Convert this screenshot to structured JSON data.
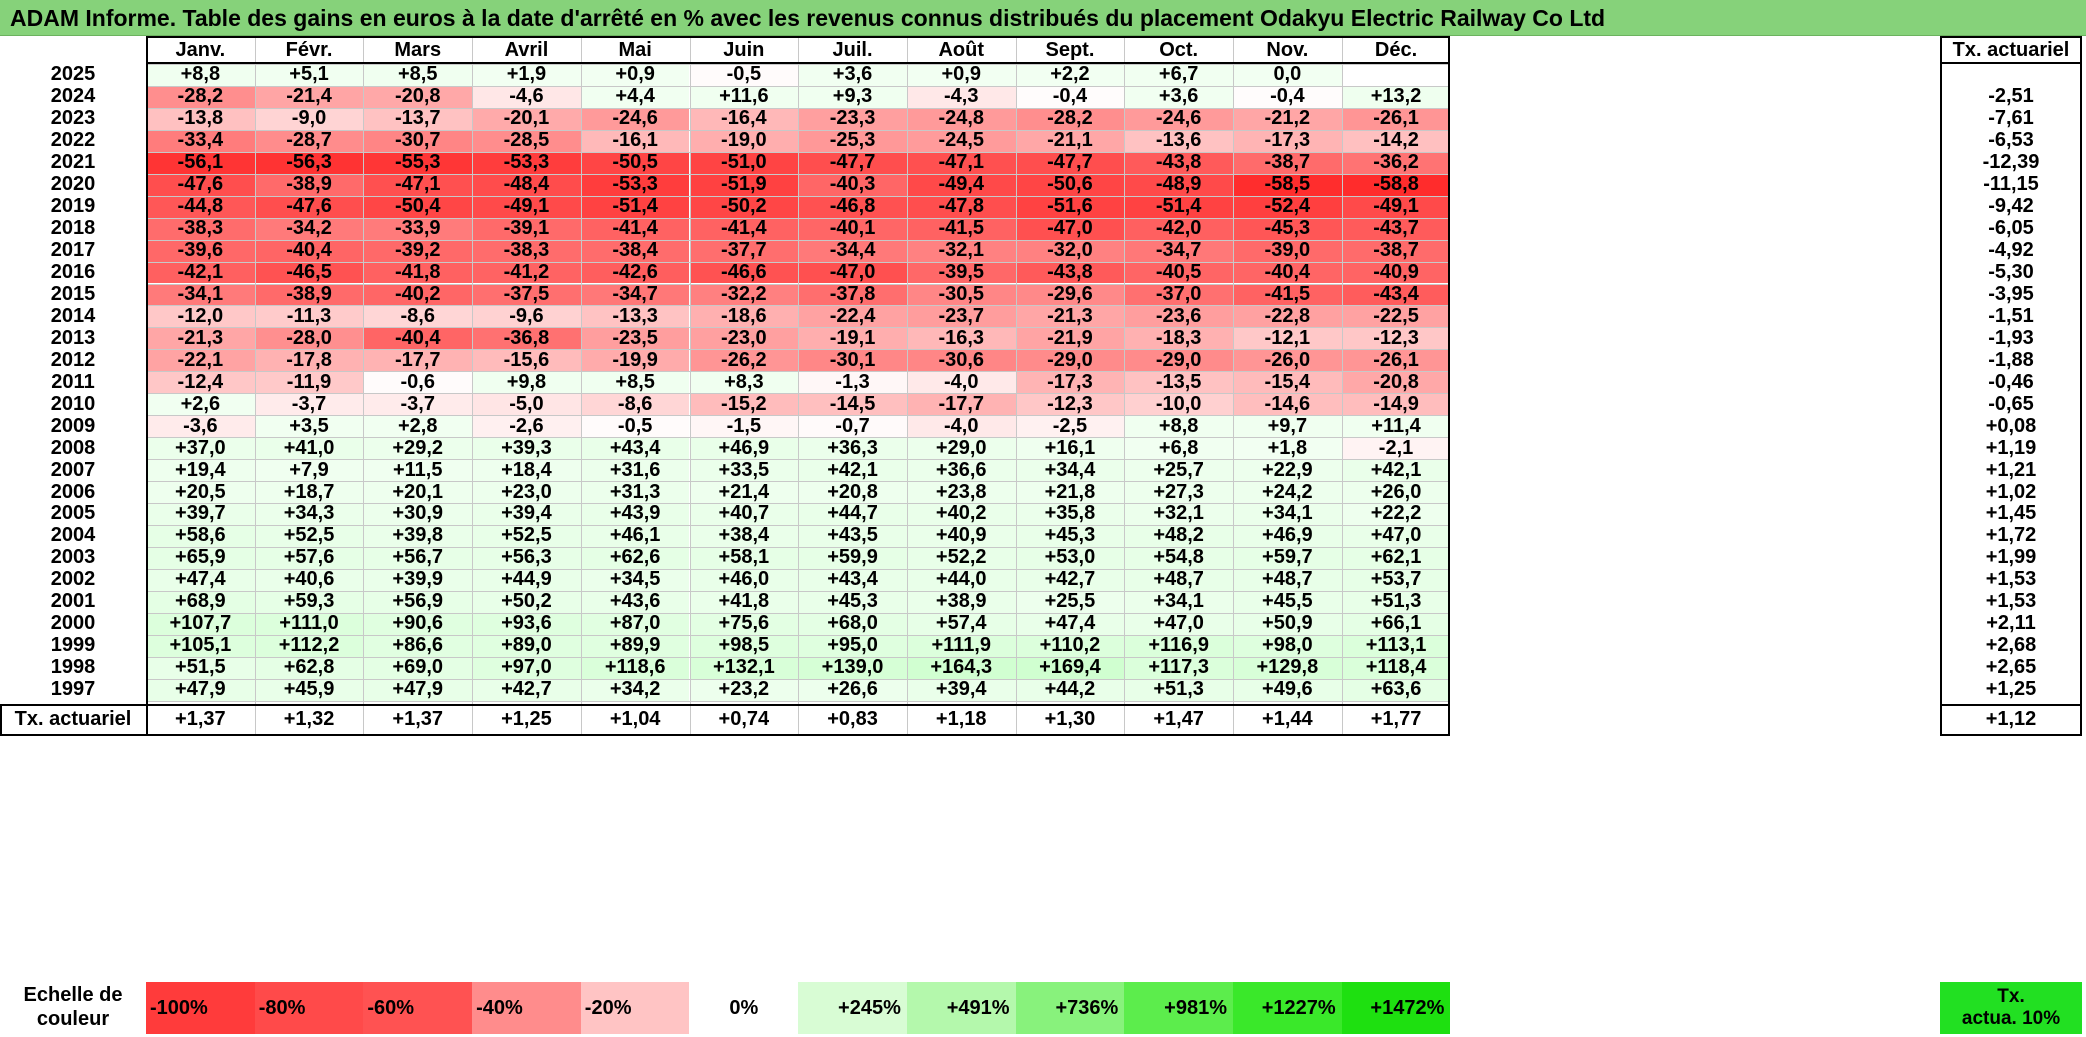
{
  "title": "ADAM Informe. Table des gains en euros à la date d'arrêté en % avec les revenus connus distribués du placement Odakyu Electric Railway Co Ltd",
  "months": [
    "Janv.",
    "Févr.",
    "Mars",
    "Avril",
    "Mai",
    "Juin",
    "Juil.",
    "Août",
    "Sept.",
    "Oct.",
    "Nov.",
    "Déc."
  ],
  "annual_header": "Tx. actuariel",
  "rows": [
    {
      "year": "2025",
      "values": [
        "+8,8",
        "+5,1",
        "+8,5",
        "+1,9",
        "+0,9",
        "-0,5",
        "+3,6",
        "+0,9",
        "+2,2",
        "+6,7",
        "0,0",
        ""
      ],
      "annual": ""
    },
    {
      "year": "2024",
      "values": [
        "-28,2",
        "-21,4",
        "-20,8",
        "-4,6",
        "+4,4",
        "+11,6",
        "+9,3",
        "-4,3",
        "-0,4",
        "+3,6",
        "-0,4",
        "+13,2"
      ],
      "annual": "-2,51"
    },
    {
      "year": "2023",
      "values": [
        "-13,8",
        "-9,0",
        "-13,7",
        "-20,1",
        "-24,6",
        "-16,4",
        "-23,3",
        "-24,8",
        "-28,2",
        "-24,6",
        "-21,2",
        "-26,1"
      ],
      "annual": "-7,61"
    },
    {
      "year": "2022",
      "values": [
        "-33,4",
        "-28,7",
        "-30,7",
        "-28,5",
        "-16,1",
        "-19,0",
        "-25,3",
        "-24,5",
        "-21,1",
        "-13,6",
        "-17,3",
        "-14,2"
      ],
      "annual": "-6,53"
    },
    {
      "year": "2021",
      "values": [
        "-56,1",
        "-56,3",
        "-55,3",
        "-53,3",
        "-50,5",
        "-51,0",
        "-47,7",
        "-47,1",
        "-47,7",
        "-43,8",
        "-38,7",
        "-36,2"
      ],
      "annual": "-12,39"
    },
    {
      "year": "2020",
      "values": [
        "-47,6",
        "-38,9",
        "-47,1",
        "-48,4",
        "-53,3",
        "-51,9",
        "-40,3",
        "-49,4",
        "-50,6",
        "-48,9",
        "-58,5",
        "-58,8"
      ],
      "annual": "-11,15"
    },
    {
      "year": "2019",
      "values": [
        "-44,8",
        "-47,6",
        "-50,4",
        "-49,1",
        "-51,4",
        "-50,2",
        "-46,8",
        "-47,8",
        "-51,6",
        "-51,4",
        "-52,4",
        "-49,1"
      ],
      "annual": "-9,42"
    },
    {
      "year": "2018",
      "values": [
        "-38,3",
        "-34,2",
        "-33,9",
        "-39,1",
        "-41,4",
        "-41,4",
        "-40,1",
        "-41,5",
        "-47,0",
        "-42,0",
        "-45,3",
        "-43,7"
      ],
      "annual": "-6,05"
    },
    {
      "year": "2017",
      "values": [
        "-39,6",
        "-40,4",
        "-39,2",
        "-38,3",
        "-38,4",
        "-37,7",
        "-34,4",
        "-32,1",
        "-32,0",
        "-34,7",
        "-39,0",
        "-38,7"
      ],
      "annual": "-4,92"
    },
    {
      "year": "2016",
      "values": [
        "-42,1",
        "-46,5",
        "-41,8",
        "-41,2",
        "-42,6",
        "-46,6",
        "-47,0",
        "-39,5",
        "-43,8",
        "-40,5",
        "-40,4",
        "-40,9"
      ],
      "annual": "-5,30"
    },
    {
      "year": "2015",
      "values": [
        "-34,1",
        "-38,9",
        "-40,2",
        "-37,5",
        "-34,7",
        "-32,2",
        "-37,8",
        "-30,5",
        "-29,6",
        "-37,0",
        "-41,5",
        "-43,4"
      ],
      "annual": "-3,95"
    },
    {
      "year": "2014",
      "values": [
        "-12,0",
        "-11,3",
        "-8,6",
        "-9,6",
        "-13,3",
        "-18,6",
        "-22,4",
        "-23,7",
        "-21,3",
        "-23,6",
        "-22,8",
        "-22,5"
      ],
      "annual": "-1,51"
    },
    {
      "year": "2013",
      "values": [
        "-21,3",
        "-28,0",
        "-40,4",
        "-36,8",
        "-23,5",
        "-23,0",
        "-19,1",
        "-16,3",
        "-21,9",
        "-18,3",
        "-12,1",
        "-12,3"
      ],
      "annual": "-1,93"
    },
    {
      "year": "2012",
      "values": [
        "-22,1",
        "-17,8",
        "-17,7",
        "-15,6",
        "-19,9",
        "-26,2",
        "-30,1",
        "-30,6",
        "-29,0",
        "-29,0",
        "-26,0",
        "-26,1"
      ],
      "annual": "-1,88"
    },
    {
      "year": "2011",
      "values": [
        "-12,4",
        "-11,9",
        "-0,6",
        "+9,8",
        "+8,5",
        "+8,3",
        "-1,3",
        "-4,0",
        "-17,3",
        "-13,5",
        "-15,4",
        "-20,8"
      ],
      "annual": "-0,46"
    },
    {
      "year": "2010",
      "values": [
        "+2,6",
        "-3,7",
        "-3,7",
        "-5,0",
        "-8,6",
        "-15,2",
        "-14,5",
        "-17,7",
        "-12,3",
        "-10,0",
        "-14,6",
        "-14,9"
      ],
      "annual": "-0,65"
    },
    {
      "year": "2009",
      "values": [
        "-3,6",
        "+3,5",
        "+2,8",
        "-2,6",
        "-0,5",
        "-1,5",
        "-0,7",
        "-4,0",
        "-2,5",
        "+8,8",
        "+9,7",
        "+11,4"
      ],
      "annual": "+0,08"
    },
    {
      "year": "2008",
      "values": [
        "+37,0",
        "+41,0",
        "+29,2",
        "+39,3",
        "+43,4",
        "+46,9",
        "+36,3",
        "+29,0",
        "+16,1",
        "+6,8",
        "+1,8",
        "-2,1"
      ],
      "annual": "+1,19"
    },
    {
      "year": "2007",
      "values": [
        "+19,4",
        "+7,9",
        "+11,5",
        "+18,4",
        "+31,6",
        "+33,5",
        "+42,1",
        "+36,6",
        "+34,4",
        "+25,7",
        "+22,9",
        "+42,1"
      ],
      "annual": "+1,21"
    },
    {
      "year": "2006",
      "values": [
        "+20,5",
        "+18,7",
        "+20,1",
        "+23,0",
        "+31,3",
        "+21,4",
        "+20,8",
        "+23,8",
        "+21,8",
        "+27,3",
        "+24,2",
        "+26,0"
      ],
      "annual": "+1,02"
    },
    {
      "year": "2005",
      "values": [
        "+39,7",
        "+34,3",
        "+30,9",
        "+39,4",
        "+43,9",
        "+40,7",
        "+44,7",
        "+40,2",
        "+35,8",
        "+32,1",
        "+34,1",
        "+22,2"
      ],
      "annual": "+1,45"
    },
    {
      "year": "2004",
      "values": [
        "+58,6",
        "+52,5",
        "+39,8",
        "+52,5",
        "+46,1",
        "+38,4",
        "+43,5",
        "+40,9",
        "+45,3",
        "+48,2",
        "+46,9",
        "+47,0"
      ],
      "annual": "+1,72"
    },
    {
      "year": "2003",
      "values": [
        "+65,9",
        "+57,6",
        "+56,7",
        "+56,3",
        "+62,6",
        "+58,1",
        "+59,9",
        "+52,2",
        "+53,0",
        "+54,8",
        "+59,7",
        "+62,1"
      ],
      "annual": "+1,99"
    },
    {
      "year": "2002",
      "values": [
        "+47,4",
        "+40,6",
        "+39,9",
        "+44,9",
        "+34,5",
        "+46,0",
        "+43,4",
        "+44,0",
        "+42,7",
        "+48,7",
        "+48,7",
        "+53,7"
      ],
      "annual": "+1,53"
    },
    {
      "year": "2001",
      "values": [
        "+68,9",
        "+59,3",
        "+56,9",
        "+50,2",
        "+43,6",
        "+41,8",
        "+45,3",
        "+38,9",
        "+25,5",
        "+34,1",
        "+45,5",
        "+51,3"
      ],
      "annual": "+1,53"
    },
    {
      "year": "2000",
      "values": [
        "+107,7",
        "+111,0",
        "+90,6",
        "+93,6",
        "+87,0",
        "+75,6",
        "+68,0",
        "+57,4",
        "+47,4",
        "+47,0",
        "+50,9",
        "+66,1"
      ],
      "annual": "+2,11"
    },
    {
      "year": "1999",
      "values": [
        "+105,1",
        "+112,2",
        "+86,6",
        "+89,0",
        "+89,9",
        "+98,5",
        "+95,0",
        "+111,9",
        "+110,2",
        "+116,9",
        "+98,0",
        "+113,1"
      ],
      "annual": "+2,68"
    },
    {
      "year": "1998",
      "values": [
        "+51,5",
        "+62,8",
        "+69,0",
        "+97,0",
        "+118,6",
        "+132,1",
        "+139,0",
        "+164,3",
        "+169,4",
        "+117,3",
        "+129,8",
        "+118,4"
      ],
      "annual": "+2,65"
    },
    {
      "year": "1997",
      "values": [
        "+47,9",
        "+45,9",
        "+47,9",
        "+42,7",
        "+34,2",
        "+23,2",
        "+26,6",
        "+39,4",
        "+44,2",
        "+51,3",
        "+49,6",
        "+63,6"
      ],
      "annual": "+1,25"
    }
  ],
  "footer": {
    "label": "Tx. actuariel",
    "values": [
      "+1,37",
      "+1,32",
      "+1,37",
      "+1,25",
      "+1,04",
      "+0,74",
      "+0,83",
      "+1,18",
      "+1,30",
      "+1,47",
      "+1,44",
      "+1,77"
    ],
    "annual": "+1,12"
  },
  "legend": {
    "label_line1": "Echelle de",
    "label_line2": "couleur",
    "items": [
      {
        "label": "-100%",
        "color": "#ff3b3b"
      },
      {
        "label": "-80%",
        "color": "#ff4a4a"
      },
      {
        "label": "-60%",
        "color": "#ff5252"
      },
      {
        "label": "-40%",
        "color": "#ff8c8c"
      },
      {
        "label": "-20%",
        "color": "#ffc4c4"
      },
      {
        "label": "0%",
        "color": "#ffffff"
      },
      {
        "label": "+245%",
        "color": "#d8fcd4"
      },
      {
        "label": "+491%",
        "color": "#b4f8ac"
      },
      {
        "label": "+736%",
        "color": "#88f27c"
      },
      {
        "label": "+981%",
        "color": "#5ced4c"
      },
      {
        "label": "+1227%",
        "color": "#3ae82a"
      },
      {
        "label": "+1472%",
        "color": "#1ee010"
      }
    ],
    "actua_line1": "Tx.",
    "actua_line2": "actua. 10%",
    "actua_color": "#22e022"
  }
}
